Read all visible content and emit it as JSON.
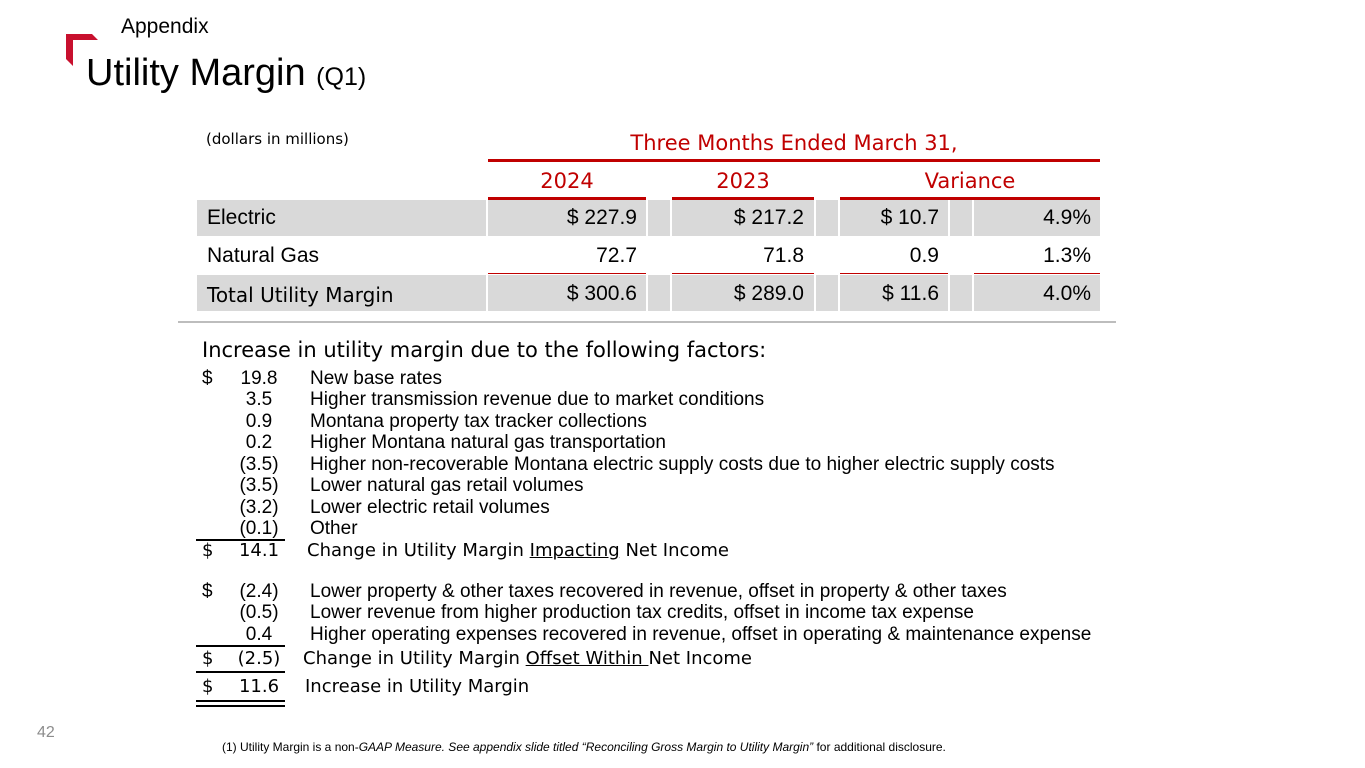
{
  "header": {
    "section": "Appendix",
    "title": "Utility Margin",
    "title_suffix": "(Q1)",
    "accent_color": "#c00000"
  },
  "table": {
    "units": "(dollars in millions)",
    "period": "Three Months Ended March 31,",
    "columns": [
      "2024",
      "2023",
      "Variance"
    ],
    "rows": [
      {
        "label": "Electric",
        "y2024": "$ 227.9",
        "y2023": "$ 217.2",
        "var": "$ 10.7",
        "pct": "4.9%"
      },
      {
        "label": "Natural Gas",
        "y2024": "72.7",
        "y2023": "71.8",
        "var": "0.9",
        "pct": "1.3%"
      },
      {
        "label": "Total Utility Margin",
        "y2024": "$ 300.6",
        "y2023": "$ 289.0",
        "var": "$ 11.6",
        "pct": "4.0%"
      }
    ]
  },
  "factors": {
    "heading": "Increase in utility margin due to the following factors:",
    "impacting": [
      {
        "cur": "$",
        "amount": "19.8",
        "desc": "New base rates"
      },
      {
        "cur": "",
        "amount": "3.5",
        "desc": "Higher transmission revenue due to market conditions"
      },
      {
        "cur": "",
        "amount": "0.9",
        "desc": "Montana property tax tracker collections"
      },
      {
        "cur": "",
        "amount": "0.2",
        "desc": "Higher Montana natural gas transportation"
      },
      {
        "cur": "",
        "amount": "(3.5)",
        "desc": "Higher non-recoverable Montana electric supply costs due to higher electric supply costs"
      },
      {
        "cur": "",
        "amount": "(3.5)",
        "desc": "Lower natural gas retail volumes"
      },
      {
        "cur": "",
        "amount": "(3.2)",
        "desc": "Lower electric retail volumes"
      },
      {
        "cur": "",
        "amount": "(0.1)",
        "desc": "Other"
      }
    ],
    "impacting_total": {
      "cur": "$",
      "amount": "14.1",
      "pre": "Change in Utility Margin ",
      "key": "Impacting",
      "post": " Net Income"
    },
    "offset": [
      {
        "cur": "$",
        "amount": "(2.4)",
        "desc": "Lower property & other taxes recovered in revenue, offset in property & other taxes"
      },
      {
        "cur": "",
        "amount": "(0.5)",
        "desc": "Lower revenue from higher production tax credits, offset in income tax expense"
      },
      {
        "cur": "",
        "amount": "0.4",
        "desc": "Higher operating expenses recovered in revenue, offset in operating & maintenance expense"
      }
    ],
    "offset_total": {
      "cur": "$",
      "amount": "(2.5)",
      "pre": "Change in Utility Margin ",
      "key": "Offset Within ",
      "post": "Net Income"
    },
    "grand_total": {
      "cur": "$",
      "amount": "11.6",
      "label": "Increase in Utility Margin"
    }
  },
  "footer": {
    "page_number": "42",
    "note_prefix": "(1) Utility Margin is a non-",
    "note_italic": "GAAP Measure. See appendix slide titled “Reconciling Gross Margin to Utility Margin”",
    "note_suffix": " for additional disclosure."
  }
}
